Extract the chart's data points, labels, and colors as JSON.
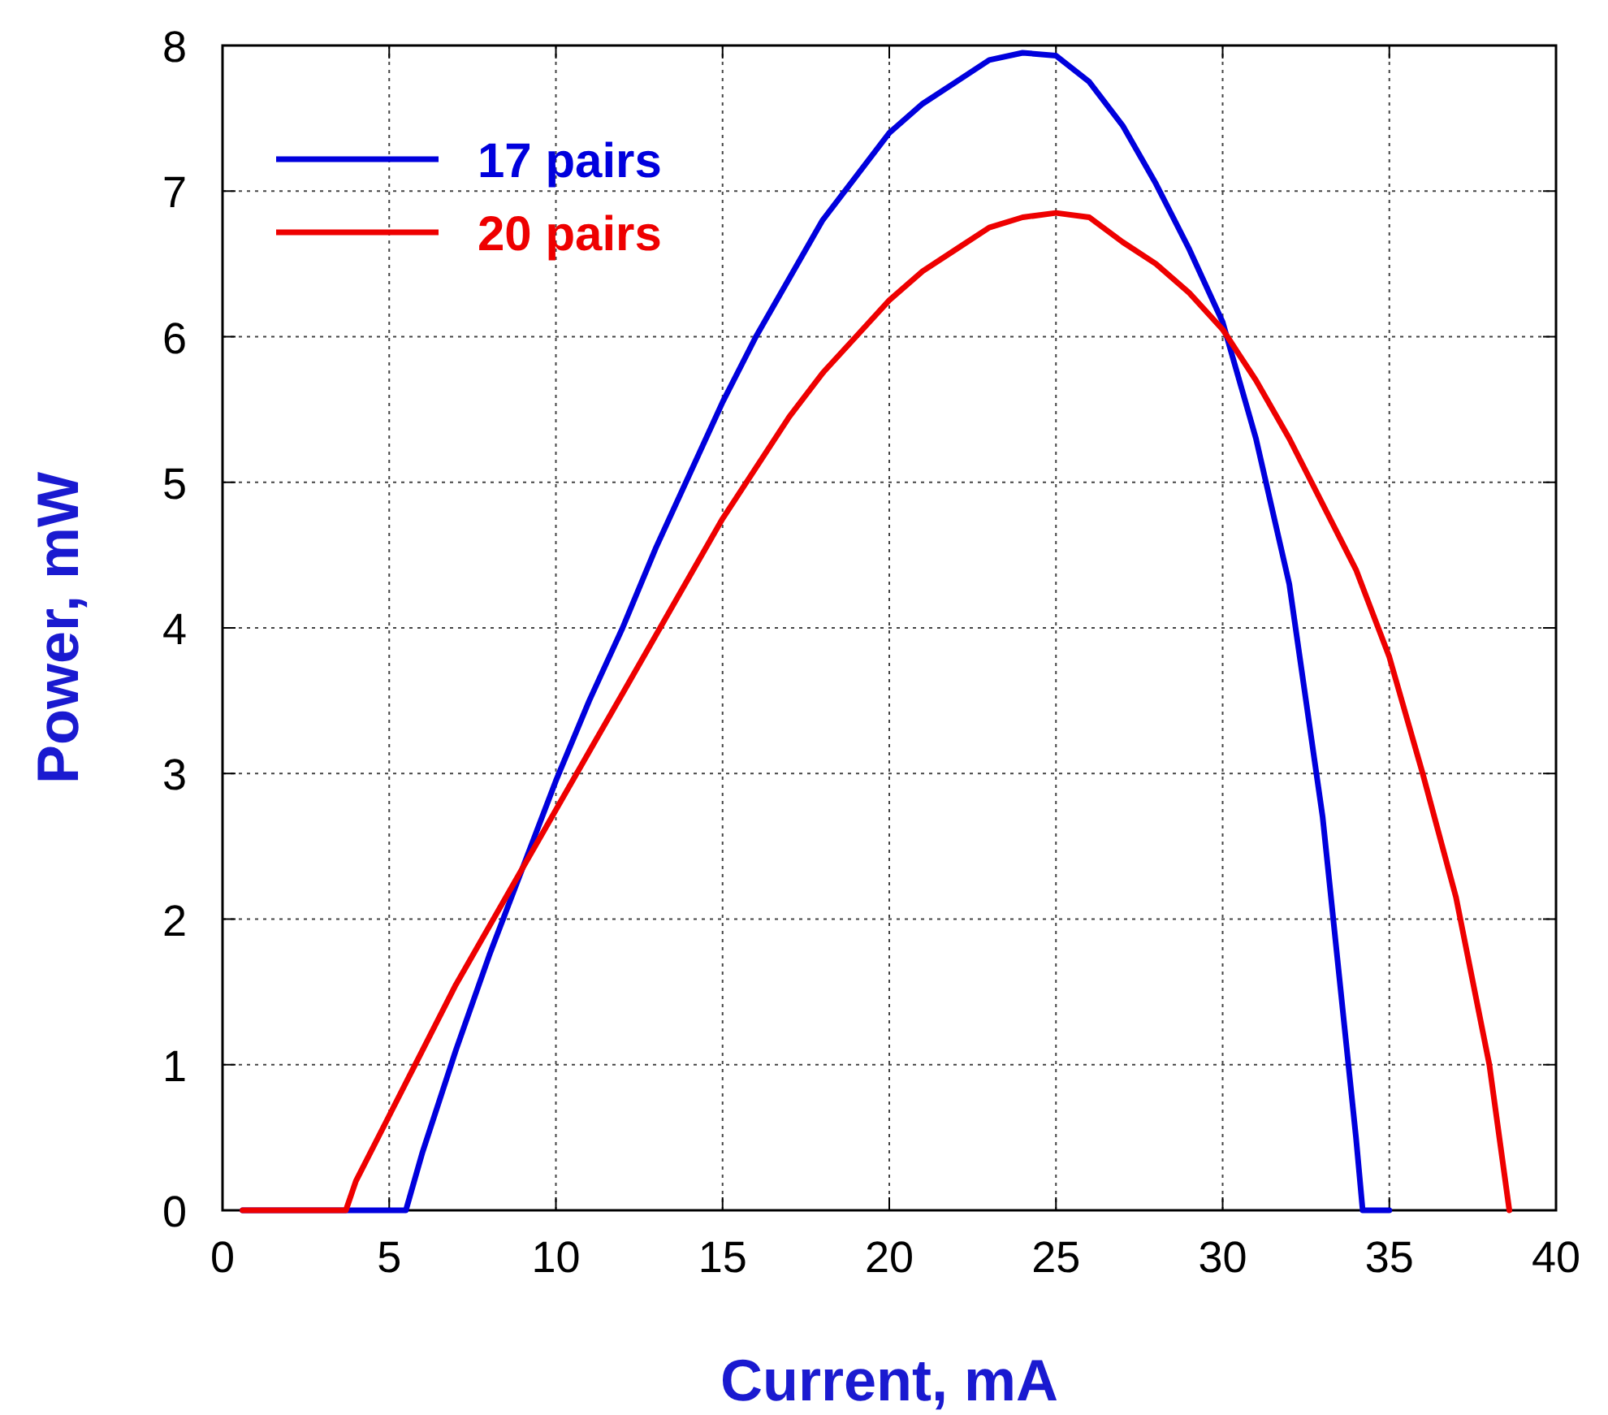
{
  "chart_data": {
    "type": "line",
    "xlabel": "Current, mA",
    "ylabel": "Power, mW",
    "xlim": [
      0,
      40
    ],
    "xticks": [
      0,
      5,
      10,
      15,
      20,
      25,
      30,
      35,
      40
    ],
    "ylim": [
      0,
      8
    ],
    "yticks": [
      0,
      1,
      2,
      3,
      4,
      5,
      6,
      7,
      8
    ],
    "grid": true,
    "legend": "top left",
    "line_style": "solid",
    "series": [
      {
        "name": "17 pairs",
        "color": "#0000dd",
        "x": [
          0.6,
          5.5,
          6,
          7,
          8,
          9,
          10,
          11,
          12,
          13,
          14,
          15,
          16,
          17,
          18,
          19,
          20,
          21,
          22,
          23,
          24,
          25,
          26,
          27,
          28,
          29,
          30,
          31,
          32,
          33,
          33.5,
          34,
          34.2,
          35
        ],
        "values": [
          0,
          0,
          0.4,
          1.1,
          1.75,
          2.35,
          2.95,
          3.5,
          4.0,
          4.55,
          5.05,
          5.55,
          6.0,
          6.4,
          6.8,
          7.1,
          7.4,
          7.6,
          7.75,
          7.9,
          7.95,
          7.93,
          7.75,
          7.45,
          7.05,
          6.6,
          6.1,
          5.3,
          4.3,
          2.7,
          1.6,
          0.5,
          0,
          0
        ]
      },
      {
        "name": "20 pairs",
        "color": "#ee0000",
        "x": [
          0.6,
          3.7,
          4,
          5,
          6,
          7,
          8,
          9,
          10,
          11,
          12,
          13,
          14,
          15,
          16,
          17,
          18,
          19,
          20,
          21,
          22,
          23,
          24,
          25,
          26,
          27,
          28,
          29,
          30,
          31,
          32,
          33,
          34,
          35,
          36,
          37,
          38,
          38.6
        ],
        "values": [
          0,
          0,
          0.2,
          0.65,
          1.1,
          1.55,
          1.95,
          2.35,
          2.75,
          3.15,
          3.55,
          3.95,
          4.35,
          4.75,
          5.1,
          5.45,
          5.75,
          6.0,
          6.25,
          6.45,
          6.6,
          6.75,
          6.82,
          6.85,
          6.82,
          6.65,
          6.5,
          6.3,
          6.05,
          5.7,
          5.3,
          4.85,
          4.4,
          3.8,
          3.0,
          2.15,
          1.0,
          0
        ]
      }
    ]
  }
}
